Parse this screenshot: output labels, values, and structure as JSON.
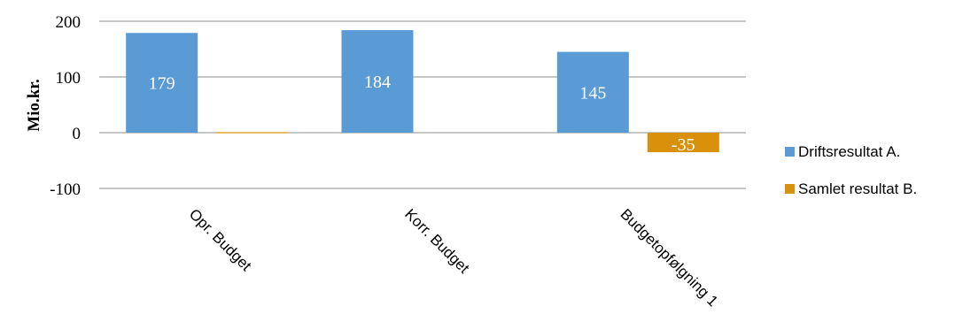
{
  "chart_data": {
    "type": "bar",
    "categories": [
      "Opr. Budget",
      "Korr. Budget",
      "Budgetopfølgning 1"
    ],
    "series": [
      {
        "name": "Driftsresultat A.",
        "color": "#5b9bd5",
        "values": [
          179,
          184,
          145
        ],
        "labels": [
          "179",
          "184",
          "145"
        ]
      },
      {
        "name": "Samlet resultat B.",
        "color": "#d9900b",
        "values": [
          1,
          0,
          -35
        ],
        "labels": [
          "",
          "",
          "-35"
        ]
      }
    ],
    "ylabel": "Mio.kr.",
    "ylim": [
      -100,
      200
    ],
    "yticks": [
      200,
      100,
      0,
      -100
    ],
    "ytick_labels": [
      "200",
      "100",
      "0",
      "-100"
    ],
    "grid": true,
    "legend": "right"
  }
}
